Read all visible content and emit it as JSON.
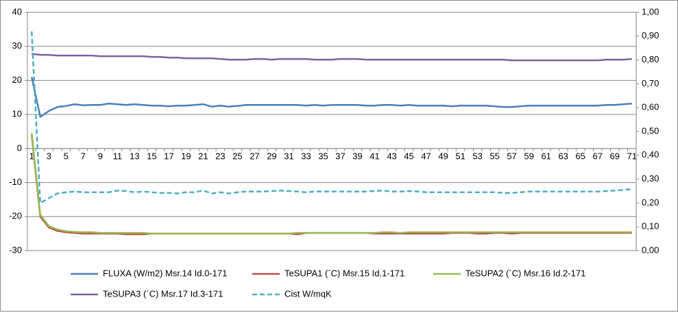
{
  "chart_data": {
    "type": "line",
    "categories": [
      1,
      null,
      3,
      null,
      5,
      null,
      7,
      null,
      9,
      null,
      11,
      null,
      13,
      null,
      15,
      null,
      17,
      null,
      19,
      null,
      21,
      null,
      23,
      null,
      25,
      null,
      27,
      null,
      29,
      null,
      31,
      null,
      33,
      null,
      35,
      null,
      37,
      null,
      39,
      null,
      41,
      null,
      43,
      null,
      45,
      null,
      47,
      null,
      49,
      null,
      51,
      null,
      53,
      null,
      55,
      null,
      57,
      null,
      59,
      null,
      61,
      null,
      63,
      null,
      65,
      null,
      67,
      null,
      69,
      null,
      71
    ],
    "ylim": [
      -30,
      40
    ],
    "yticks": [
      -30,
      -20,
      -10,
      0,
      10,
      20,
      30,
      40
    ],
    "y2lim": [
      0,
      1
    ],
    "y2ticks": [
      {
        "value": 0,
        "label": "0,00"
      },
      {
        "value": 0.1,
        "label": "0,10"
      },
      {
        "value": 0.2,
        "label": "0,20"
      },
      {
        "value": 0.3,
        "label": "0,30"
      },
      {
        "value": 0.4,
        "label": "0,40"
      },
      {
        "value": 0.5,
        "label": "0,50"
      },
      {
        "value": 0.6,
        "label": "0,60"
      },
      {
        "value": 0.7,
        "label": "0,70"
      },
      {
        "value": 0.8,
        "label": "0,80"
      },
      {
        "value": 0.9,
        "label": "0,90"
      },
      {
        "value": 1,
        "label": "1,00"
      }
    ],
    "grid": true,
    "legend": "bottom",
    "series": [
      {
        "name": "FLUXA (W/m2) Msr.14 Id.0-171",
        "color": "#4a7ebb",
        "values": [
          21,
          9.3,
          11,
          12.2,
          12.5,
          13,
          12.7,
          12.8,
          12.8,
          13.2,
          13,
          12.8,
          13,
          12.8,
          12.6,
          12.6,
          12.4,
          12.6,
          12.6,
          12.8,
          13,
          12.3,
          12.6,
          12.3,
          12.5,
          12.8,
          12.8,
          12.8,
          12.8,
          12.8,
          12.8,
          12.8,
          12.6,
          12.8,
          12.6,
          12.8,
          12.8,
          12.8,
          12.8,
          12.6,
          12.6,
          12.8,
          12.8,
          12.6,
          12.8,
          12.6,
          12.6,
          12.6,
          12.6,
          12.4,
          12.6,
          12.6,
          12.6,
          12.6,
          12.4,
          12.2,
          12.2,
          12.4,
          12.6,
          12.6,
          12.6,
          12.6,
          12.6,
          12.6,
          12.6,
          12.6,
          12.6,
          12.8,
          12.8,
          13,
          13.2
        ]
      },
      {
        "name": "TeSUPA1 (´C) Msr.15 Id.1-171",
        "color": "#be4b48",
        "values": [
          4,
          -20,
          -23.2,
          -24.2,
          -24.6,
          -24.8,
          -25,
          -25,
          -25,
          -25,
          -25,
          -25.2,
          -25.2,
          -25.2,
          -25,
          -25,
          -25,
          -25,
          -25,
          -25,
          -25,
          -25,
          -25,
          -25,
          -25,
          -25,
          -25,
          -25,
          -25,
          -25,
          -25,
          -25.2,
          -24.8,
          -24.8,
          -24.8,
          -24.8,
          -24.8,
          -24.8,
          -24.8,
          -24.8,
          -25,
          -25,
          -25,
          -25,
          -25,
          -25,
          -25,
          -25,
          -25,
          -24.8,
          -24.8,
          -24.8,
          -25,
          -25,
          -24.8,
          -24.8,
          -25,
          -24.8,
          -24.8,
          -24.8,
          -24.8,
          -24.8,
          -24.8,
          -24.8,
          -24.8,
          -24.8,
          -24.8,
          -24.8,
          -24.8,
          -24.8,
          -24.8
        ]
      },
      {
        "name": "TeSUPA2 (´C) Msr.16 Id.2-171",
        "color": "#98b954",
        "values": [
          4.5,
          -19.5,
          -22.8,
          -23.8,
          -24.3,
          -24.5,
          -24.6,
          -24.6,
          -24.8,
          -24.8,
          -24.8,
          -24.8,
          -24.8,
          -24.8,
          -25,
          -25,
          -25,
          -25,
          -25,
          -25,
          -25,
          -25,
          -25,
          -25,
          -25,
          -25,
          -25,
          -25,
          -25,
          -25,
          -25,
          -24.8,
          -24.8,
          -24.8,
          -24.8,
          -24.8,
          -24.8,
          -24.8,
          -24.8,
          -24.8,
          -24.8,
          -24.6,
          -24.6,
          -24.8,
          -24.6,
          -24.6,
          -24.6,
          -24.6,
          -24.6,
          -24.6,
          -24.6,
          -24.6,
          -24.6,
          -24.6,
          -24.6,
          -24.6,
          -24.6,
          -24.6,
          -24.6,
          -24.6,
          -24.6,
          -24.6,
          -24.6,
          -24.6,
          -24.6,
          -24.6,
          -24.6,
          -24.6,
          -24.6,
          -24.6,
          -24.6
        ]
      },
      {
        "name": "TeSUPA3 (´C) Msr.17 Id.3-171",
        "color": "#7d60a0",
        "values": [
          27.8,
          27.5,
          27.5,
          27.3,
          27.3,
          27.3,
          27.3,
          27.3,
          27.1,
          27.1,
          27.1,
          27.1,
          27.1,
          27.1,
          26.9,
          26.9,
          26.7,
          26.7,
          26.5,
          26.5,
          26.5,
          26.5,
          26.3,
          26.1,
          26.1,
          26.1,
          26.3,
          26.3,
          26.1,
          26.3,
          26.3,
          26.3,
          26.3,
          26.1,
          26.1,
          26.1,
          26.3,
          26.3,
          26.3,
          26.1,
          26.1,
          26.1,
          26.1,
          26.1,
          26.1,
          26.1,
          26.1,
          26.1,
          26.1,
          26.1,
          26.1,
          26.1,
          26.1,
          26.1,
          26.1,
          26.1,
          25.9,
          25.9,
          25.9,
          25.9,
          25.9,
          25.9,
          25.9,
          25.9,
          25.9,
          25.9,
          25.9,
          26.1,
          26.1,
          26.1,
          26.3
        ]
      },
      {
        "name": "Cist W/mqK",
        "color": "#4bacc6",
        "axis": "y2",
        "dashed": true,
        "values": [
          0.92,
          0.2,
          0.22,
          0.24,
          0.245,
          0.248,
          0.245,
          0.245,
          0.245,
          0.245,
          0.252,
          0.25,
          0.245,
          0.248,
          0.245,
          0.242,
          0.242,
          0.24,
          0.245,
          0.245,
          0.252,
          0.24,
          0.245,
          0.24,
          0.245,
          0.248,
          0.248,
          0.248,
          0.25,
          0.252,
          0.25,
          0.248,
          0.245,
          0.248,
          0.248,
          0.248,
          0.248,
          0.248,
          0.248,
          0.248,
          0.25,
          0.252,
          0.248,
          0.248,
          0.25,
          0.248,
          0.245,
          0.245,
          0.245,
          0.245,
          0.245,
          0.245,
          0.245,
          0.245,
          0.245,
          0.242,
          0.242,
          0.245,
          0.248,
          0.248,
          0.248,
          0.248,
          0.248,
          0.248,
          0.248,
          0.248,
          0.248,
          0.25,
          0.252,
          0.255,
          0.258
        ]
      }
    ]
  }
}
